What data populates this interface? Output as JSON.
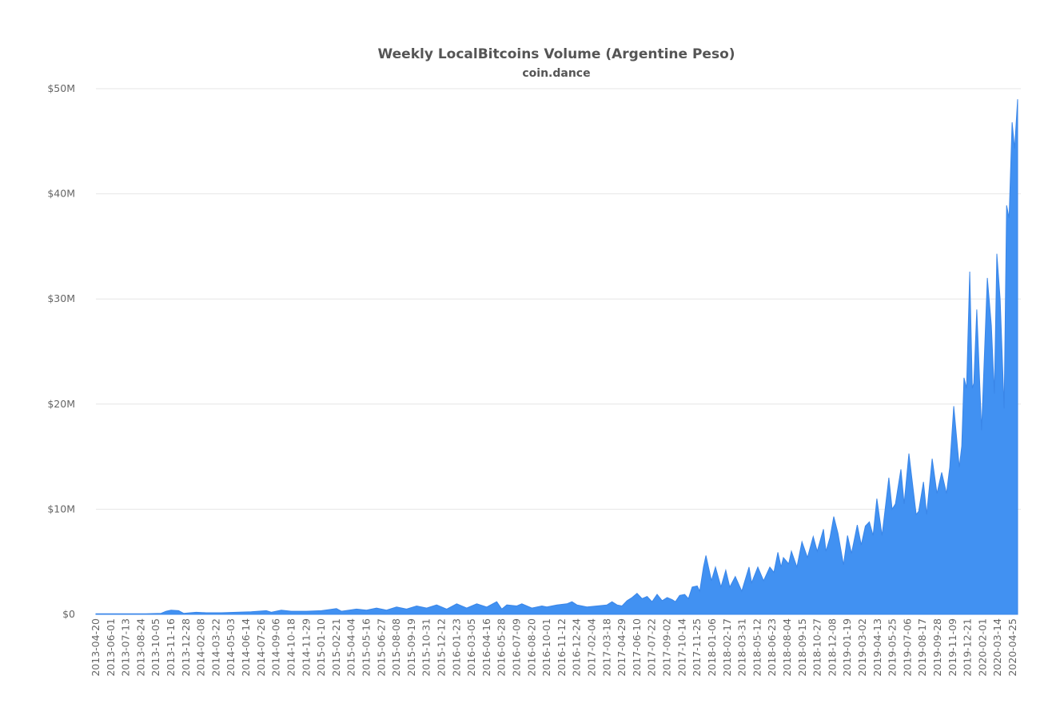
{
  "chart_data": {
    "type": "area",
    "title": "Weekly LocalBitcoins Volume (Argentine Peso)",
    "subtitle": "coin.dance",
    "xlabel": "",
    "ylabel": "",
    "ylim": [
      0,
      50
    ],
    "y_unit": "millions (ARS)",
    "y_ticks": [
      0,
      10,
      20,
      30,
      40,
      50
    ],
    "y_tick_labels": [
      "$0",
      "$10M",
      "$20M",
      "$30M",
      "$40M",
      "$50M"
    ],
    "grid": true,
    "legend": "none",
    "color": "#4191f2",
    "x_unit": "weeks since 2013-04-20",
    "x_tick_labels": [
      "2013-04-20",
      "2013-06-01",
      "2013-07-13",
      "2013-08-24",
      "2013-10-05",
      "2013-11-16",
      "2013-12-28",
      "2014-02-08",
      "2014-03-22",
      "2014-05-03",
      "2014-06-14",
      "2014-07-26",
      "2014-09-06",
      "2014-10-18",
      "2014-11-29",
      "2015-01-10",
      "2015-02-21",
      "2015-04-04",
      "2015-05-16",
      "2015-06-27",
      "2015-08-08",
      "2015-09-19",
      "2015-10-31",
      "2015-12-12",
      "2016-01-23",
      "2016-03-05",
      "2016-04-16",
      "2016-05-28",
      "2016-07-09",
      "2016-08-20",
      "2016-10-01",
      "2016-11-12",
      "2016-12-24",
      "2017-02-04",
      "2017-03-18",
      "2017-04-29",
      "2017-06-10",
      "2017-07-22",
      "2017-09-02",
      "2017-10-14",
      "2017-11-25",
      "2018-01-06",
      "2018-02-17",
      "2018-03-31",
      "2018-05-12",
      "2018-06-23",
      "2018-08-04",
      "2018-09-15",
      "2018-10-27",
      "2018-12-08",
      "2019-01-19",
      "2019-03-02",
      "2019-04-13",
      "2019-05-25",
      "2019-07-06",
      "2019-08-17",
      "2019-09-28",
      "2019-11-09",
      "2019-12-21",
      "2020-02-01",
      "2020-03-14",
      "2020-04-25"
    ],
    "x_tick_step_weeks": 6,
    "series": [
      {
        "name": "Weekly Volume",
        "x": [
          0,
          20,
          26,
          28,
          30,
          33,
          35,
          40,
          44,
          50,
          56,
          62,
          68,
          70,
          74,
          78,
          84,
          90,
          96,
          98,
          104,
          108,
          112,
          116,
          120,
          124,
          128,
          132,
          136,
          140,
          144,
          148,
          152,
          156,
          160,
          162,
          164,
          168,
          170,
          174,
          178,
          180,
          184,
          188,
          190,
          192,
          196,
          200,
          204,
          206,
          208,
          210,
          212,
          214,
          216,
          218,
          220,
          222,
          224,
          226,
          228,
          230,
          231.3,
          233,
          235,
          236.5,
          238,
          240,
          241,
          242.5,
          243.5,
          245.7,
          247.3,
          249.5,
          251.4,
          253,
          255.2,
          257.8,
          260.7,
          261.7,
          264.2,
          266.5,
          269,
          270.6,
          272.2,
          273.5,
          274.4,
          276.5,
          277.6,
          279.8,
          281.8,
          284,
          286.3,
          287.9,
          290.4,
          291.4,
          293,
          294.5,
          296.2,
          298.4,
          300,
          301.6,
          303.9,
          305.5,
          307.1,
          308.7,
          310.2,
          311.7,
          313.8,
          316.5,
          317.8,
          319.1,
          321.3,
          322.6,
          324.5,
          327.4,
          328.4,
          330.3,
          331.6,
          333.8,
          335.7,
          337.6,
          339.5,
          340.8,
          342.4,
          344.6,
          345.6,
          346.5,
          347.5,
          348.8,
          349.8,
          350.4,
          351.6,
          353.5,
          355.8,
          357.4,
          358.6,
          359.6,
          360.9,
          362.5,
          363.5,
          364.5,
          365.7,
          366.7,
          367.9
        ],
        "y": [
          0.05,
          0.05,
          0.1,
          0.3,
          0.4,
          0.35,
          0.1,
          0.2,
          0.15,
          0.15,
          0.2,
          0.25,
          0.35,
          0.2,
          0.4,
          0.3,
          0.3,
          0.35,
          0.55,
          0.3,
          0.5,
          0.4,
          0.6,
          0.4,
          0.7,
          0.5,
          0.8,
          0.6,
          0.9,
          0.5,
          1.0,
          0.6,
          1.0,
          0.7,
          1.2,
          0.5,
          0.9,
          0.8,
          1.0,
          0.6,
          0.8,
          0.7,
          0.9,
          1.0,
          1.2,
          0.9,
          0.7,
          0.8,
          0.9,
          1.2,
          0.9,
          0.8,
          1.3,
          1.6,
          2.0,
          1.5,
          1.7,
          1.2,
          1.9,
          1.3,
          1.6,
          1.4,
          1.2,
          1.8,
          1.9,
          1.5,
          2.6,
          2.7,
          2.2,
          4.5,
          5.6,
          3.2,
          4.5,
          2.6,
          4.2,
          2.6,
          3.6,
          2.2,
          4.5,
          3.0,
          4.5,
          3.2,
          4.5,
          4.0,
          5.9,
          4.5,
          5.4,
          4.8,
          6.0,
          4.5,
          6.9,
          5.4,
          7.4,
          6.0,
          8.1,
          6.0,
          7.3,
          9.3,
          7.7,
          4.7,
          7.5,
          5.8,
          8.5,
          6.6,
          8.4,
          8.8,
          7.5,
          11,
          7.5,
          13,
          10,
          10.5,
          13.8,
          10.5,
          15.3,
          9.5,
          9.8,
          12.6,
          9.5,
          14.8,
          11.5,
          13.5,
          11.5,
          14,
          19.8,
          14,
          16,
          22.5,
          21.5,
          32.6,
          21.5,
          22,
          29,
          17.5,
          32,
          27.5,
          21,
          34.3,
          30,
          19.6,
          38.9,
          37.7,
          46.8,
          44.3,
          49
        ]
      }
    ]
  }
}
